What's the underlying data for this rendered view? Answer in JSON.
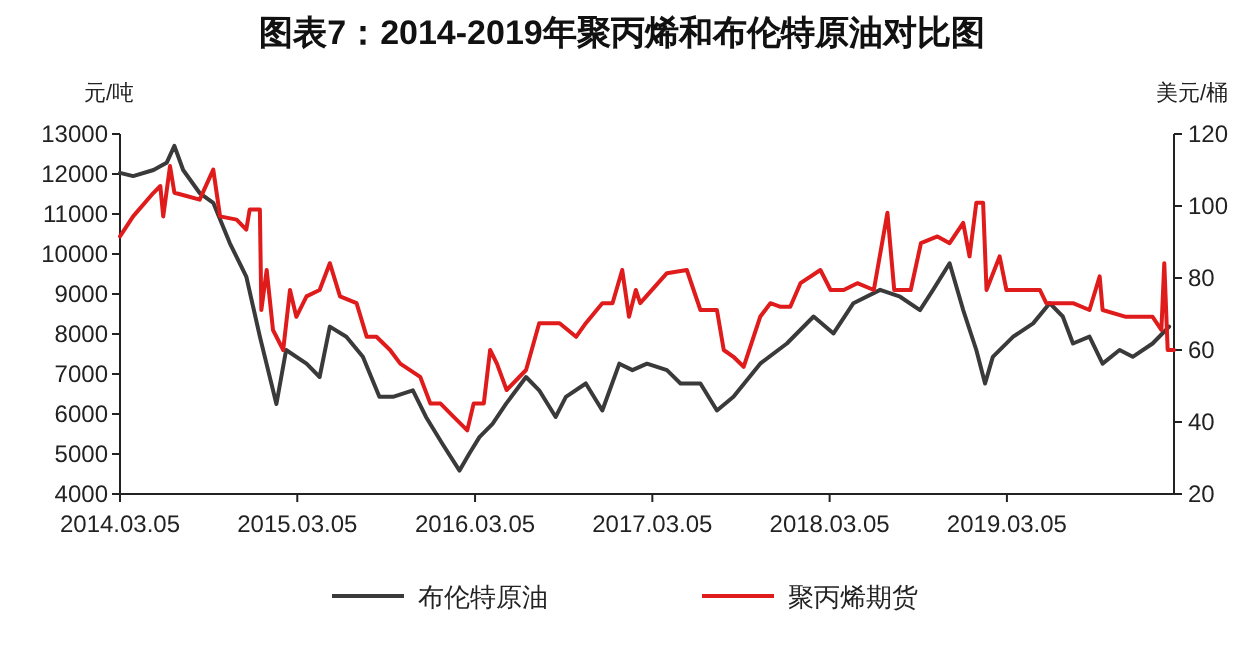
{
  "chart_data": {
    "type": "line",
    "title": "图表7：2014-2019年聚丙烯和布伦特原油对比图",
    "ylabel": "元/吨",
    "y2label": "美元/桶",
    "xlim": [
      "2014-03-05",
      "2020-02-12"
    ],
    "xticks": [
      {
        "value": "2014-03-05",
        "label": "2014.03.05"
      },
      {
        "value": "2015-03-05",
        "label": "2015.03.05"
      },
      {
        "value": "2016-03-05",
        "label": "2016.03.05"
      },
      {
        "value": "2017-03-05",
        "label": "2017.03.05"
      },
      {
        "value": "2018-03-05",
        "label": "2018.03.05"
      },
      {
        "value": "2019-03-05",
        "label": "2019.03.05"
      }
    ],
    "ylim": [
      4000,
      13000
    ],
    "yticks": [
      4000,
      5000,
      6000,
      7000,
      8000,
      9000,
      10000,
      11000,
      12000,
      13000
    ],
    "y2lim": [
      20,
      120
    ],
    "y2ticks": [
      20,
      40,
      60,
      80,
      100,
      120
    ],
    "legend": "bottom",
    "grid": false,
    "line_style": "solid",
    "marker": "none",
    "series": [
      {
        "name": "布伦特原油",
        "color": "#3a3a3a",
        "axis": "y2",
        "x": [
          "2014-03-05",
          "2014-04-01",
          "2014-05-13",
          "2014-06-09",
          "2014-06-25",
          "2014-07-13",
          "2014-08-16",
          "2014-09-13",
          "2014-10-17",
          "2014-11-20",
          "2014-12-18",
          "2015-01-21",
          "2015-02-10",
          "2015-03-24",
          "2015-04-20",
          "2015-05-11",
          "2015-06-14",
          "2015-07-18",
          "2015-08-21",
          "2015-09-18",
          "2015-10-29",
          "2015-11-25",
          "2015-12-29",
          "2016-02-02",
          "2016-02-22",
          "2016-03-14",
          "2016-04-10",
          "2016-05-08",
          "2016-06-18",
          "2016-07-15",
          "2016-08-18",
          "2016-09-08",
          "2016-10-19",
          "2016-11-22",
          "2016-12-27",
          "2017-01-23",
          "2017-02-22",
          "2017-04-04",
          "2017-05-02",
          "2017-06-12",
          "2017-07-16",
          "2017-08-19",
          "2017-10-13",
          "2017-12-07",
          "2018-01-31",
          "2018-03-13",
          "2018-04-23",
          "2018-06-17",
          "2018-07-28",
          "2018-09-07",
          "2018-10-04",
          "2018-11-07",
          "2018-12-05",
          "2019-01-01",
          "2019-01-19",
          "2019-02-04",
          "2019-03-18",
          "2019-04-28",
          "2019-06-01",
          "2019-06-28",
          "2019-07-19",
          "2019-08-22",
          "2019-09-18",
          "2019-10-23",
          "2019-11-19",
          "2019-12-30",
          "2020-02-02"
        ],
        "values": [
          109.2,
          108.3,
          110,
          112,
          116.7,
          110,
          103.6,
          100.9,
          89.7,
          80.4,
          63.7,
          45,
          60,
          56.2,
          52.5,
          66.5,
          63.7,
          58.1,
          47,
          47,
          48.8,
          41.4,
          33.9,
          26.5,
          31.2,
          35.8,
          39.5,
          45.1,
          52.5,
          48.8,
          41.4,
          47,
          50.7,
          43.2,
          56.2,
          54.4,
          56.2,
          54.4,
          50.7,
          50.7,
          43.2,
          47,
          56.2,
          61.8,
          69.3,
          64.6,
          73,
          76.7,
          74.8,
          71.1,
          76.7,
          84.1,
          71.1,
          60,
          50.7,
          58.1,
          63.7,
          67.4,
          73,
          69.3,
          61.8,
          63.7,
          56.2,
          60,
          58.1,
          61.8,
          66.5
        ]
      },
      {
        "name": "聚丙烯期货",
        "color": "#e01b1b",
        "x": [
          "2014-03-05",
          "2014-04-01",
          "2014-05-13",
          "2014-05-27",
          "2014-06-02",
          "2014-06-16",
          "2014-06-25",
          "2014-07-20",
          "2014-08-16",
          "2014-09-13",
          "2014-09-27",
          "2014-10-31",
          "2014-11-20",
          "2014-11-27",
          "2014-12-18",
          "2014-12-21",
          "2015-01-01",
          "2015-01-14",
          "2015-02-04",
          "2015-02-18",
          "2015-03-03",
          "2015-03-24",
          "2015-04-20",
          "2015-05-11",
          "2015-06-01",
          "2015-07-05",
          "2015-07-26",
          "2015-08-15",
          "2015-09-12",
          "2015-10-03",
          "2015-11-13",
          "2015-12-04",
          "2015-12-25",
          "2016-01-21",
          "2016-02-18",
          "2016-03-02",
          "2016-03-23",
          "2016-04-05",
          "2016-04-19",
          "2016-05-09",
          "2016-06-18",
          "2016-07-15",
          "2016-08-26",
          "2016-09-29",
          "2016-10-19",
          "2016-11-22",
          "2016-12-13",
          "2017-01-02",
          "2017-01-16",
          "2017-01-30",
          "2017-02-08",
          "2017-04-04",
          "2017-05-15",
          "2017-06-12",
          "2017-07-16",
          "2017-07-30",
          "2017-08-19",
          "2017-09-09",
          "2017-10-13",
          "2017-11-03",
          "2017-11-24",
          "2017-12-14",
          "2018-01-04",
          "2018-02-14",
          "2018-03-07",
          "2018-04-03",
          "2018-05-01",
          "2018-06-04",
          "2018-07-02",
          "2018-07-16",
          "2018-08-19",
          "2018-09-09",
          "2018-10-13",
          "2018-11-07",
          "2018-12-05",
          "2018-12-18",
          "2019-01-01",
          "2019-01-15",
          "2019-01-22",
          "2019-02-18",
          "2019-03-04",
          "2019-04-14",
          "2019-05-12",
          "2019-05-25",
          "2019-07-19",
          "2019-08-22",
          "2019-09-12",
          "2019-09-18",
          "2019-11-05",
          "2019-12-30",
          "2020-01-17",
          "2020-01-23",
          "2020-01-30",
          "2020-02-12"
        ],
        "values": [
          10440,
          10940,
          11530,
          11700,
          10940,
          12200,
          11530,
          11450,
          11360,
          12110,
          10940,
          10860,
          10610,
          11110,
          11110,
          8600,
          9600,
          8100,
          7600,
          9100,
          8430,
          8940,
          9100,
          9770,
          8940,
          8770,
          7930,
          7930,
          7600,
          7260,
          6930,
          6260,
          6260,
          5930,
          5590,
          6260,
          6260,
          7600,
          7260,
          6600,
          7100,
          8270,
          8270,
          7930,
          8270,
          8770,
          8770,
          9600,
          8430,
          9100,
          8770,
          9520,
          9600,
          8600,
          8600,
          7600,
          7430,
          7180,
          8430,
          8770,
          8680,
          8680,
          9270,
          9600,
          9100,
          9100,
          9270,
          9100,
          11030,
          9100,
          9100,
          10270,
          10440,
          10270,
          10780,
          9940,
          11280,
          11280,
          9100,
          9940,
          9100,
          9100,
          9100,
          8770,
          8770,
          8600,
          9440,
          8600,
          8430,
          8430,
          8100,
          9770,
          7600,
          7600
        ]
      }
    ]
  }
}
